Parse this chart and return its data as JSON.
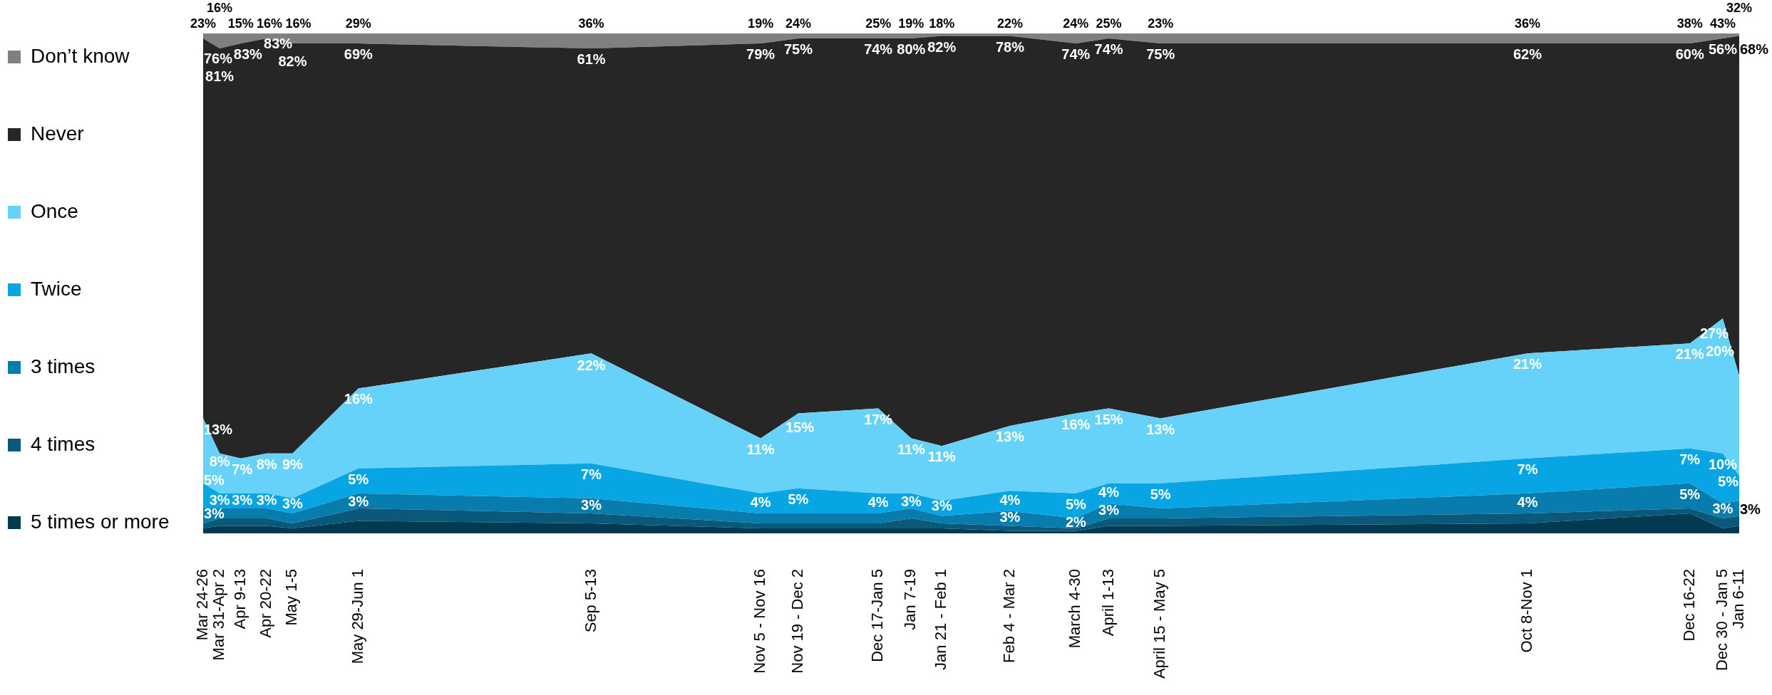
{
  "chart_data": {
    "type": "area",
    "stacked": true,
    "legend": "left",
    "tick_labels": "x",
    "x": [
      "2020-03-24",
      "2020-03-31",
      "2020-04-09",
      "2020-04-20",
      "2020-05-01",
      "2020-05-29",
      "2020-09-05",
      "2020-11-16",
      "2020-12-02",
      "2021-01-05",
      "2021-01-19",
      "2021-02-01",
      "2021-03-02",
      "2021-03-30",
      "2021-04-13",
      "2021-05-05",
      "2021-10-08",
      "2021-12-16",
      "2021-12-30",
      "2022-01-06"
    ],
    "xlim": [
      "2020-03-24",
      "2022-01-06"
    ],
    "xticks": [
      {
        "value": "2020-03-24",
        "label": "Mar 24-26"
      },
      {
        "value": "2020-03-31",
        "label": "Mar 31-Apr 2"
      },
      {
        "value": "2020-04-09",
        "label": "Apr 9-13"
      },
      {
        "value": "2020-04-20",
        "label": "Apr 20-22"
      },
      {
        "value": "2020-05-01",
        "label": "May 1-5"
      },
      {
        "value": "2020-05-29",
        "label": "May 29-Jun 1"
      },
      {
        "value": "2020-09-05",
        "label": "Sep 5-13"
      },
      {
        "value": "2020-11-16",
        "label": "Nov 5 - Nov 16"
      },
      {
        "value": "2020-12-02",
        "label": "Nov 19 - Dec 2"
      },
      {
        "value": "2021-01-05",
        "label": "Dec 17-Jan 5"
      },
      {
        "value": "2021-01-19",
        "label": "Jan 7-19"
      },
      {
        "value": "2021-02-01",
        "label": "Jan 21 - Feb 1"
      },
      {
        "value": "2021-03-02",
        "label": "Feb 4 - Mar 2"
      },
      {
        "value": "2021-03-30",
        "label": "March 4-30"
      },
      {
        "value": "2021-04-13",
        "label": "April 1-13"
      },
      {
        "value": "2021-05-05",
        "label": "April 15 - May 5"
      },
      {
        "value": "2021-10-08",
        "label": "Oct 8-Nov 1"
      },
      {
        "value": "2021-12-16",
        "label": "Dec 16-22"
      },
      {
        "value": "2021-12-30",
        "label": "Dec 30 - Jan 5"
      },
      {
        "value": "2022-01-06",
        "label": "Jan 6-11"
      }
    ],
    "series": [
      {
        "name": "5 times or more",
        "color": "#023a52",
        "values": [
          1,
          1.5,
          1.5,
          1.5,
          1,
          2.5,
          2,
          1,
          1,
          1,
          1,
          1,
          0.5,
          0.5,
          1.5,
          1.5,
          2,
          4,
          1,
          1.5
        ]
      },
      {
        "name": "4 times",
        "color": "#0a587a",
        "values": [
          1,
          1.5,
          1.5,
          1.5,
          1,
          2.5,
          2,
          1,
          1,
          1,
          2,
          1,
          1,
          0.5,
          1.5,
          1.5,
          2,
          1,
          2,
          2
        ]
      },
      {
        "name": "3 times",
        "color": "#087cad",
        "values": [
          3,
          2,
          2,
          2,
          2,
          3,
          3,
          2,
          2,
          2,
          2,
          1.5,
          3,
          2,
          3,
          2,
          4,
          5,
          3,
          3
        ],
        "value_labels": [
          "3%",
          null,
          null,
          null,
          null,
          "3%",
          "3%",
          null,
          null,
          null,
          null,
          null,
          "3%",
          "2%",
          "3%",
          null,
          "4%",
          "5%",
          "3%",
          "3%"
        ]
      },
      {
        "name": "Twice",
        "color": "#08a5e5",
        "values": [
          5,
          3,
          3,
          3,
          3,
          5,
          7,
          4,
          5,
          4,
          3,
          3,
          4,
          5,
          4,
          5,
          7,
          7,
          10,
          5
        ],
        "value_labels": [
          "5%",
          "3%",
          "3%",
          "3%",
          "3%",
          "5%",
          "7%",
          "4%",
          "5%",
          "4%",
          "3%",
          "3%",
          "4%",
          "5%",
          "4%",
          "5%",
          "7%",
          "7%",
          "10%",
          "5%"
        ]
      },
      {
        "name": "Once",
        "color": "#66d2f9",
        "values": [
          13,
          8,
          7,
          8,
          9,
          16,
          22,
          11,
          15,
          17,
          11,
          11,
          13,
          16,
          15,
          13,
          21,
          21,
          27,
          20
        ],
        "value_labels": [
          "13%",
          "8%",
          "7%",
          "8%",
          "9%",
          "16%",
          "22%",
          "11%",
          "15%",
          "17%",
          "11%",
          "11%",
          "13%",
          "16%",
          "15%",
          "13%",
          "21%",
          "21%",
          "27%",
          "20%"
        ]
      },
      {
        "name": "Never",
        "color": "#262626",
        "values": [
          76,
          81,
          83,
          83,
          82,
          69,
          61,
          79,
          75,
          74,
          80,
          82,
          78,
          74,
          74,
          75,
          62,
          60,
          56,
          68
        ],
        "value_labels": [
          "76%",
          "81%",
          "83%",
          "83%",
          "82%",
          "69%",
          "61%",
          "79%",
          "75%",
          "74%",
          "80%",
          "82%",
          "78%",
          "74%",
          "74%",
          "75%",
          "62%",
          "60%",
          "56%",
          "68%"
        ]
      },
      {
        "name": "Don’t know",
        "color": "#808080",
        "values": [
          1,
          3,
          2,
          1,
          2,
          2,
          3,
          2,
          1,
          1,
          1,
          0.5,
          0.5,
          2,
          1,
          2,
          2,
          2,
          1,
          0.5
        ]
      }
    ],
    "annotations": [
      {
        "text": "23%",
        "x": "2020-03-24",
        "y": 100
      },
      {
        "text": "16%",
        "x": "2020-03-31",
        "y": 100
      },
      {
        "text": "15%",
        "x": "2020-04-09",
        "y": 100
      },
      {
        "text": "16%",
        "x": "2020-04-20",
        "y": 100
      },
      {
        "text": "16%",
        "x": "2020-05-01",
        "y": 100
      },
      {
        "text": "29%",
        "x": "2020-05-29",
        "y": 100
      },
      {
        "text": "36%",
        "x": "2020-09-05",
        "y": 100
      },
      {
        "text": "19%",
        "x": "2020-11-16",
        "y": 100
      },
      {
        "text": "24%",
        "x": "2020-12-02",
        "y": 100
      },
      {
        "text": "25%",
        "x": "2021-01-05",
        "y": 100
      },
      {
        "text": "19%",
        "x": "2021-01-19",
        "y": 100
      },
      {
        "text": "18%",
        "x": "2021-02-01",
        "y": 100
      },
      {
        "text": "22%",
        "x": "2021-03-02",
        "y": 100
      },
      {
        "text": "24%",
        "x": "2021-03-30",
        "y": 100
      },
      {
        "text": "25%",
        "x": "2021-04-13",
        "y": 100
      },
      {
        "text": "23%",
        "x": "2021-05-05",
        "y": 100
      },
      {
        "text": "36%",
        "x": "2021-10-08",
        "y": 100
      },
      {
        "text": "38%",
        "x": "2021-12-16",
        "y": 100
      },
      {
        "text": "43%",
        "x": "2021-12-30",
        "y": 100
      },
      {
        "text": "32%",
        "x": "2022-01-06",
        "y": 100
      }
    ]
  }
}
